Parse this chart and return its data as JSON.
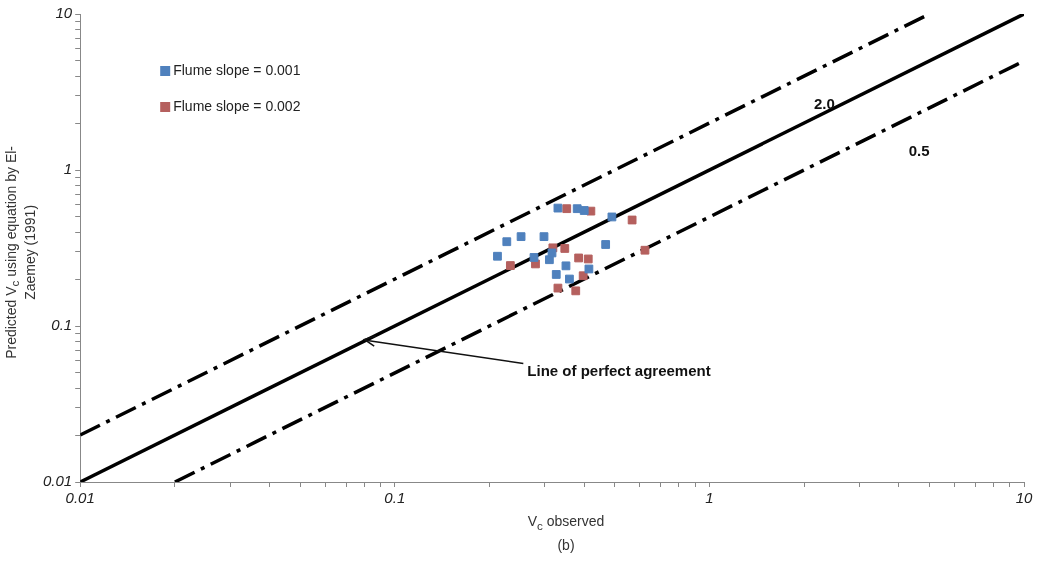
{
  "chart_data": {
    "type": "scatter",
    "xlabel": "V$_{c}$ observed",
    "ylabel": "Predicted V$_{c}$ using equation by El-Zaemey (1991)",
    "log": "xy",
    "grid": false,
    "legend": "top left",
    "xlim": [
      0.01,
      10
    ],
    "ylim": [
      0.01,
      10
    ],
    "xticks": [
      0.01,
      {
        "value": 0.02,
        "label": null
      },
      {
        "value": 0.03,
        "label": null
      },
      {
        "value": 0.04,
        "label": null
      },
      {
        "value": 0.05,
        "label": null
      },
      {
        "value": 0.06,
        "label": null
      },
      {
        "value": 0.07,
        "label": null
      },
      {
        "value": 0.08,
        "label": null
      },
      {
        "value": 0.09,
        "label": null
      },
      0.1,
      {
        "value": 0.2,
        "label": null
      },
      {
        "value": 0.3,
        "label": null
      },
      {
        "value": 0.4,
        "label": null
      },
      {
        "value": 0.5,
        "label": null
      },
      {
        "value": 0.6,
        "label": null
      },
      {
        "value": 0.7,
        "label": null
      },
      {
        "value": 0.8,
        "label": null
      },
      {
        "value": 0.9,
        "label": null
      },
      1,
      {
        "value": 2,
        "label": null
      },
      {
        "value": 3,
        "label": null
      },
      {
        "value": 4,
        "label": null
      },
      {
        "value": 5,
        "label": null
      },
      {
        "value": 6,
        "label": null
      },
      {
        "value": 7,
        "label": null
      },
      {
        "value": 8,
        "label": null
      },
      {
        "value": 9,
        "label": null
      },
      10
    ],
    "yticks": [
      0.01,
      {
        "value": 0.02,
        "label": null
      },
      {
        "value": 0.03,
        "label": null
      },
      {
        "value": 0.04,
        "label": null
      },
      {
        "value": 0.05,
        "label": null
      },
      {
        "value": 0.06,
        "label": null
      },
      {
        "value": 0.07,
        "label": null
      },
      {
        "value": 0.08,
        "label": null
      },
      {
        "value": 0.09,
        "label": null
      },
      0.1,
      {
        "value": 0.2,
        "label": null
      },
      {
        "value": 0.3,
        "label": null
      },
      {
        "value": 0.4,
        "label": null
      },
      {
        "value": 0.5,
        "label": null
      },
      {
        "value": 0.6,
        "label": null
      },
      {
        "value": 0.7,
        "label": null
      },
      {
        "value": 0.8,
        "label": null
      },
      {
        "value": 0.9,
        "label": null
      },
      1,
      {
        "value": 2,
        "label": null
      },
      {
        "value": 3,
        "label": null
      },
      {
        "value": 4,
        "label": null
      },
      {
        "value": 5,
        "label": null
      },
      {
        "value": 6,
        "label": null
      },
      {
        "value": 7,
        "label": null
      },
      {
        "value": 8,
        "label": null
      },
      {
        "value": 9,
        "label": null
      },
      10
    ],
    "series": [
      {
        "name": "Flume slope = 0.001",
        "color": "#4f81bd",
        "marker": "square",
        "x": [
          0.33,
          0.38,
          0.4,
          0.49,
          0.227,
          0.252,
          0.298,
          0.212,
          0.468,
          0.277,
          0.31,
          0.316,
          0.35,
          0.414,
          0.326,
          0.359
        ],
        "values": [
          0.57,
          0.565,
          0.55,
          0.5,
          0.347,
          0.374,
          0.374,
          0.28,
          0.333,
          0.275,
          0.266,
          0.294,
          0.243,
          0.232,
          0.214,
          0.2
        ]
      },
      {
        "name": "Flume slope = 0.002",
        "color": "#b5605e",
        "marker": "square",
        "x": [
          0.352,
          0.42,
          0.568,
          0.318,
          0.347,
          0.233,
          0.28,
          0.384,
          0.412,
          0.624,
          0.397,
          0.33,
          0.376
        ],
        "values": [
          0.565,
          0.545,
          0.478,
          0.317,
          0.314,
          0.244,
          0.25,
          0.273,
          0.269,
          0.306,
          0.21,
          0.175,
          0.168
        ]
      },
      {
        "type": "line",
        "color": "#000000",
        "line_style": "solid",
        "marker": "none",
        "x": [
          0.01,
          10
        ],
        "values": [
          0.01,
          10
        ]
      },
      {
        "type": "line",
        "name": "2.0",
        "color": "#000000",
        "line_style": "dashed",
        "marker": "none",
        "x": [
          0.01,
          5
        ],
        "values": [
          0.02,
          10
        ]
      },
      {
        "type": "line",
        "name": "0.5",
        "color": "#000000",
        "line_style": "dashed",
        "marker": "none",
        "x": [
          0.02,
          10
        ],
        "values": [
          0.01,
          5
        ]
      }
    ],
    "annotations": [
      {
        "text": "Line of perfect agreement",
        "x": 0.08,
        "y": 0.082
      },
      "(b)"
    ]
  }
}
